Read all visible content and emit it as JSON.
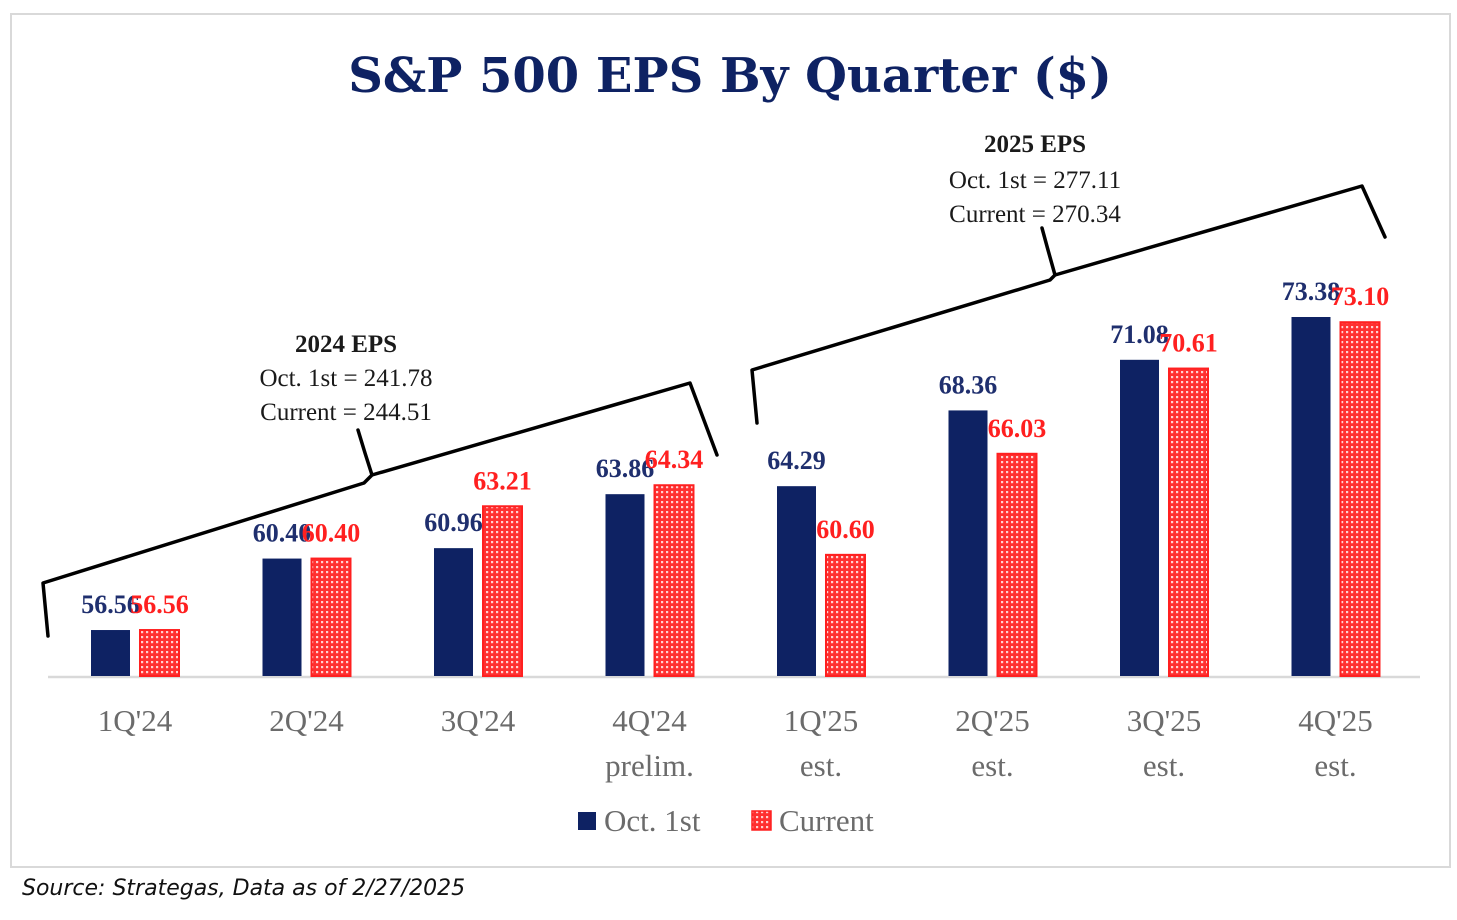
{
  "chart_data": {
    "type": "bar",
    "title": "S&P 500 EPS By Quarter ($)",
    "xlabel": "",
    "ylabel": "",
    "ylim": [
      54.09,
      76
    ],
    "grid": false,
    "legend_position": "bottom-center",
    "categories": [
      [
        "1Q'24"
      ],
      [
        "2Q'24"
      ],
      [
        "3Q'24"
      ],
      [
        "4Q'24",
        "prelim."
      ],
      [
        "1Q'25",
        "est."
      ],
      [
        "2Q'25",
        "est."
      ],
      [
        "3Q'25",
        "est."
      ],
      [
        "4Q'25",
        "est."
      ]
    ],
    "series": [
      {
        "name": "Oct. 1st",
        "color": "#0e2263",
        "pattern": "solid",
        "values": [
          56.56,
          60.4,
          60.96,
          63.86,
          64.29,
          68.36,
          71.08,
          73.38
        ],
        "labels": [
          "56.56",
          "60.40",
          "60.96",
          "63.86",
          "64.29",
          "68.36",
          "71.08",
          "73.38"
        ]
      },
      {
        "name": "Current",
        "color": "#ff2020",
        "pattern": "dotted",
        "values": [
          56.56,
          60.4,
          63.21,
          64.34,
          60.6,
          66.03,
          70.61,
          73.1
        ],
        "labels": [
          "56.56",
          "60.40",
          "63.21",
          "64.34",
          "60.60",
          "66.03",
          "70.61",
          "73.10"
        ]
      }
    ],
    "annotations": [
      {
        "name": "2024-eps",
        "heading": "2024 EPS",
        "lines": [
          "Oct. 1st = 241.78",
          "Current = 244.51"
        ],
        "spans": [
          "1Q'24",
          "4Q'24"
        ]
      },
      {
        "name": "2025-eps",
        "heading": "2025 EPS",
        "lines": [
          "Oct. 1st = 277.11",
          "Current = 270.34"
        ],
        "spans": [
          "1Q'25",
          "4Q'25"
        ]
      }
    ]
  },
  "footer": {
    "source": "Source: Strategas, Data as of 2/27/2025"
  }
}
